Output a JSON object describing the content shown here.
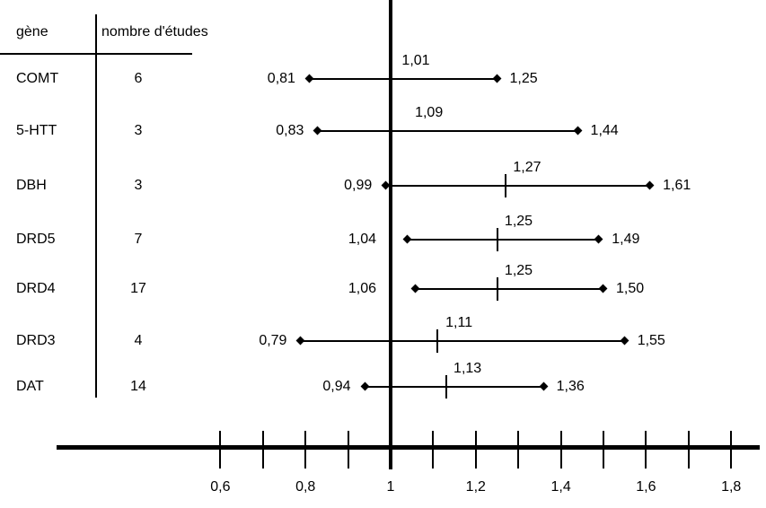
{
  "table": {
    "header": {
      "gene_col": "gène",
      "n_studies_col": "nombre d'études"
    }
  },
  "chart_data": {
    "type": "forest",
    "title": "",
    "description": "Forest plot of odds ratios with confidence intervals per gene",
    "reference_line_value": 1,
    "x_axis": {
      "minor_tick_step": 0.1,
      "minor_tick_range": [
        0.6,
        1.8
      ],
      "range_shown": [
        0.22,
        1.87
      ],
      "labeled_ticks": [
        {
          "value": 0.6,
          "label": "0,6"
        },
        {
          "value": 0.8,
          "label": "0,8"
        },
        {
          "value": 1.0,
          "label": "1"
        },
        {
          "value": 1.2,
          "label": "1,2"
        },
        {
          "value": 1.4,
          "label": "1,4"
        },
        {
          "value": 1.6,
          "label": "1,6"
        },
        {
          "value": 1.8,
          "label": "1,8"
        }
      ]
    },
    "rows": [
      {
        "gene": "COMT",
        "n_studies": "6",
        "low": 0.81,
        "estimate": 1.01,
        "high": 1.25,
        "low_label": "0,81",
        "estimate_label": "1,01",
        "high_label": "1,25",
        "estimate_tick": false
      },
      {
        "gene": "5-HTT",
        "n_studies": "3",
        "low": 0.83,
        "estimate": 1.09,
        "high": 1.44,
        "low_label": "0,83",
        "estimate_label": "1,09",
        "high_label": "1,44",
        "estimate_tick": false
      },
      {
        "gene": "DBH",
        "n_studies": "3",
        "low": 0.99,
        "estimate": 1.27,
        "high": 1.61,
        "low_label": "0,99",
        "estimate_label": "1,27",
        "high_label": "1,61",
        "estimate_tick": true
      },
      {
        "gene": "DRD5",
        "n_studies": "7",
        "low": 1.04,
        "estimate": 1.25,
        "high": 1.49,
        "low_label": "1,04",
        "estimate_label": "1,25",
        "high_label": "1,49",
        "estimate_tick": true
      },
      {
        "gene": "DRD4",
        "n_studies": "17",
        "low": 1.06,
        "estimate": 1.25,
        "high": 1.5,
        "low_label": "1,06",
        "estimate_label": "1,25",
        "high_label": "1,50",
        "estimate_tick": true
      },
      {
        "gene": "DRD3",
        "n_studies": "4",
        "low": 0.79,
        "estimate": 1.11,
        "high": 1.55,
        "low_label": "0,79",
        "estimate_label": "1,11",
        "high_label": "1,55",
        "estimate_tick": true
      },
      {
        "gene": "DAT",
        "n_studies": "14",
        "low": 0.94,
        "estimate": 1.13,
        "high": 1.36,
        "low_label": "0,94",
        "estimate_label": "1,13",
        "high_label": "1,36",
        "estimate_tick": true
      }
    ],
    "colors": {
      "foreground": "#000000",
      "background": "#ffffff"
    }
  }
}
